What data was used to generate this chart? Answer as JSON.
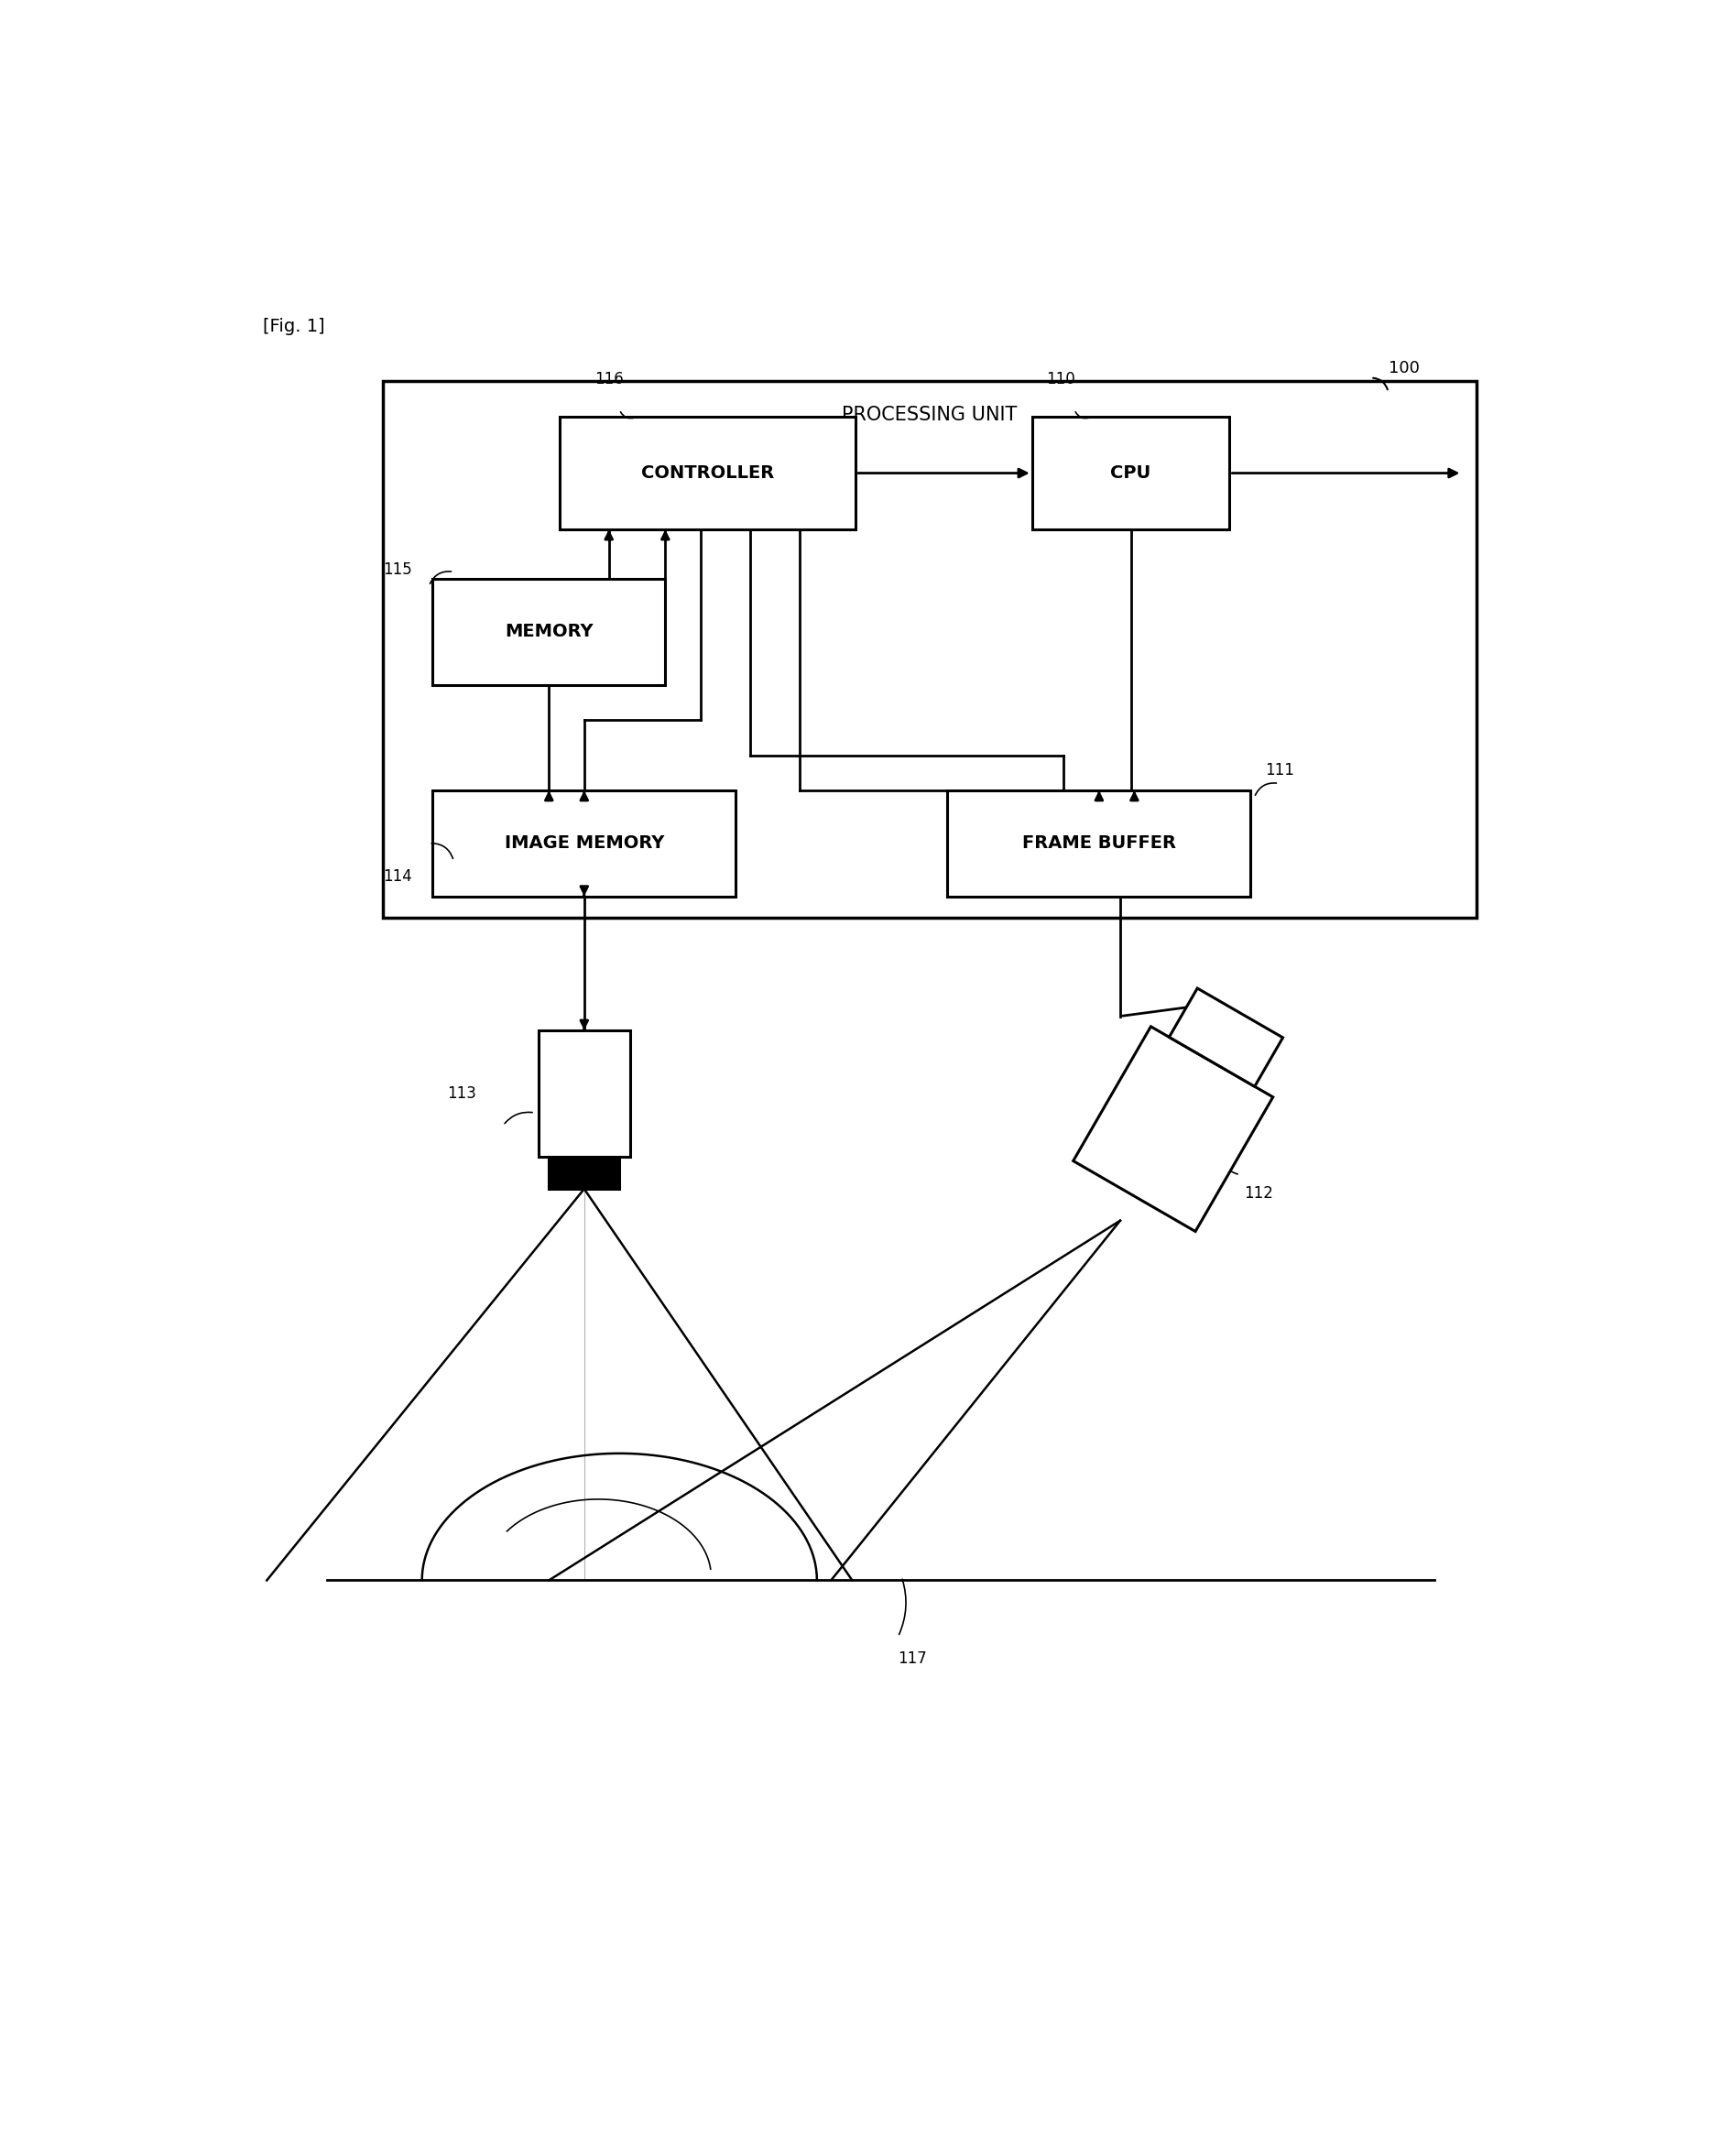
{
  "fig_label": "[Fig. 1]",
  "title_label": "PROCESSING UNIT",
  "bg_color": "#ffffff",
  "box_color": "#000000",
  "text_color": "#000000",
  "labels": {
    "controller": "CONTROLLER",
    "cpu": "CPU",
    "memory": "MEMORY",
    "image_memory": "IMAGE MEMORY",
    "frame_buffer": "FRAME BUFFER"
  },
  "ref_numbers": {
    "main": "100",
    "cpu": "110",
    "frame_buffer": "111",
    "camera": "112",
    "projector": "113",
    "image_memory": "114",
    "memory": "115",
    "controller": "116",
    "surface": "117"
  }
}
